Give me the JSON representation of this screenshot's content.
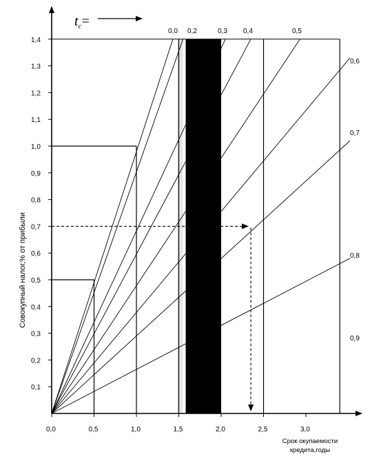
{
  "chart_data": {
    "type": "line",
    "xlabel": "Срок окупаемости кредита,годы",
    "xlabel_lines": [
      "Срок окупаемости",
      "кредита,годы"
    ],
    "ylabel": "Совокупный налог,% от прибыли",
    "legend_title_main": "t",
    "legend_title_sub": "c",
    "legend_title_suffix": "=",
    "xlim": [
      0,
      3.5
    ],
    "ylim": [
      0,
      1.4
    ],
    "x_ticks": [
      "0,0",
      "0,5",
      "1,0",
      "1,5",
      "2,0",
      "2,5",
      "3,0"
    ],
    "x_tick_values": [
      0,
      0.5,
      1.0,
      1.5,
      2.0,
      2.5,
      3.0
    ],
    "y_ticks": [
      "0,1",
      "0,2",
      "0,3",
      "0,4",
      "0,5",
      "0,6",
      "0,7",
      "0,8",
      "0,9",
      "1,0",
      "1,1",
      "1,2",
      "1,3",
      "1,4"
    ],
    "y_tick_values": [
      0.1,
      0.2,
      0.3,
      0.4,
      0.5,
      0.6,
      0.7,
      0.8,
      0.9,
      1.0,
      1.1,
      1.2,
      1.3,
      1.4
    ],
    "series": [
      {
        "name": "0,0",
        "x": [
          0,
          1.43
        ],
        "y": [
          0,
          1.4
        ]
      },
      {
        "name": "0,2",
        "x": [
          0,
          1.55
        ],
        "y": [
          0,
          1.4
        ]
      },
      {
        "name": "0,3",
        "x": [
          0,
          2.05
        ],
        "y": [
          0,
          1.4
        ]
      },
      {
        "name": "0,4",
        "x": [
          0,
          2.35
        ],
        "y": [
          0,
          1.4
        ]
      },
      {
        "name": "0,5",
        "x": [
          0,
          2.93
        ],
        "y": [
          0,
          1.4
        ]
      },
      {
        "name": "0,6",
        "x": [
          0,
          3.52
        ],
        "y": [
          0,
          1.33
        ]
      },
      {
        "name": "0,7",
        "x": [
          0,
          3.52
        ],
        "y": [
          0,
          1.02
        ]
      },
      {
        "name": "0,8",
        "x": [
          0,
          3.52
        ],
        "y": [
          0,
          0.58
        ]
      },
      {
        "name": "0,9",
        "x": [
          0,
          3.52
        ],
        "y": [
          0,
          0.0
        ]
      }
    ],
    "curve_labels_top": [
      "0,0",
      "0,2",
      "0,3",
      "0,4",
      "0,5"
    ],
    "curve_labels_right": [
      "0,6",
      "0,7",
      "0,8",
      "0,9"
    ],
    "shaded_band": {
      "x_from": 1.5,
      "x_to": 2.0,
      "color": "#000000"
    },
    "light_band": {
      "x_from": 1.48,
      "x_to": 1.55
    },
    "reference_lines": [
      {
        "type": "hline",
        "y": 1.0,
        "x_to": 1.0
      },
      {
        "type": "hline",
        "y": 0.5,
        "x_to": 0.5
      },
      {
        "type": "vline",
        "x": 0.5,
        "y_to": 0.5
      },
      {
        "type": "vline",
        "x": 1.0,
        "y_to": 1.0
      },
      {
        "type": "vline",
        "x": 1.5,
        "y_to": 1.4
      },
      {
        "type": "vline",
        "x": 2.5,
        "y_to": 1.4
      },
      {
        "type": "vline",
        "x": 3.4,
        "y_to": 1.4
      }
    ],
    "example_path": {
      "x": 2.35,
      "y": 0.7,
      "style": "dashed"
    },
    "grid": false
  }
}
